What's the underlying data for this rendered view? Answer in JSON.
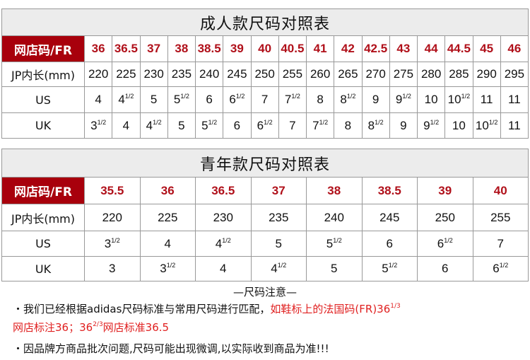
{
  "adult": {
    "title": "成人款尺码对照表",
    "labels": [
      "网店码/FR",
      "JP内长(mm)",
      "US",
      "UK"
    ],
    "fr": [
      "36",
      "36.5",
      "37",
      "38",
      "38.5",
      "39",
      "40",
      "40.5",
      "41",
      "42",
      "42.5",
      "43",
      "44",
      "44.5",
      "45",
      "46"
    ],
    "jp": [
      "220",
      "225",
      "230",
      "235",
      "240",
      "245",
      "250",
      "255",
      "260",
      "265",
      "270",
      "275",
      "280",
      "285",
      "290",
      "295"
    ],
    "us": [
      [
        "4",
        ""
      ],
      [
        "4",
        "1/2"
      ],
      [
        "5",
        ""
      ],
      [
        "5",
        "1/2"
      ],
      [
        "6",
        ""
      ],
      [
        "6",
        "1/2"
      ],
      [
        "7",
        ""
      ],
      [
        "7",
        "1/2"
      ],
      [
        "8",
        ""
      ],
      [
        "8",
        "1/2"
      ],
      [
        "9",
        ""
      ],
      [
        "9",
        "1/2"
      ],
      [
        "10",
        ""
      ],
      [
        "10",
        "1/2"
      ],
      [
        "11",
        ""
      ],
      [
        "11",
        ""
      ]
    ],
    "uk": [
      [
        "3",
        "1/2"
      ],
      [
        "4",
        ""
      ],
      [
        "4",
        "1/2"
      ],
      [
        "5",
        ""
      ],
      [
        "5",
        "1/2"
      ],
      [
        "6",
        ""
      ],
      [
        "6",
        "1/2"
      ],
      [
        "7",
        ""
      ],
      [
        "7",
        "1/2"
      ],
      [
        "8",
        ""
      ],
      [
        "8",
        "1/2"
      ],
      [
        "9",
        ""
      ],
      [
        "9",
        "1/2"
      ],
      [
        "10",
        ""
      ],
      [
        "10",
        "1/2"
      ],
      [
        "11",
        ""
      ]
    ]
  },
  "youth": {
    "title": "青年款尺码对照表",
    "labels": [
      "网店码/FR",
      "JP内长(mm)",
      "US",
      "UK"
    ],
    "fr": [
      "35.5",
      "36",
      "36.5",
      "37",
      "38",
      "38.5",
      "39",
      "40"
    ],
    "jp": [
      "220",
      "225",
      "230",
      "235",
      "240",
      "245",
      "250",
      "255"
    ],
    "us": [
      [
        "3",
        "1/2"
      ],
      [
        "4",
        ""
      ],
      [
        "4",
        "1/2"
      ],
      [
        "5",
        ""
      ],
      [
        "5",
        "1/2"
      ],
      [
        "6",
        ""
      ],
      [
        "6",
        "1/2"
      ],
      [
        "7",
        ""
      ]
    ],
    "uk": [
      [
        "3",
        ""
      ],
      [
        "3",
        "1/2"
      ],
      [
        "4",
        ""
      ],
      [
        "4",
        "1/2"
      ],
      [
        "5",
        ""
      ],
      [
        "5",
        "1/2"
      ],
      [
        "6",
        ""
      ],
      [
        "6",
        "1/2"
      ]
    ]
  },
  "notes": {
    "title": "—尺码注意—",
    "line1_black": "・我们已经根据adidas尺码标准与常用尺码进行匹配，",
    "line1_red": "如鞋标上的法国码(FR)36",
    "line1_sup": "1/3",
    "line2_a": "网店标注36；36",
    "line2_sup": "2/3",
    "line2_b": "网店标准36.5",
    "line3": "・因品牌方商品批次问题,尺码可能出现微调,以实际收到商品为准!!!"
  },
  "colors": {
    "header_bg": "#a8000c",
    "fr_text": "#b0101a",
    "note_red": "#e02020",
    "title_bg": "#ececec"
  }
}
